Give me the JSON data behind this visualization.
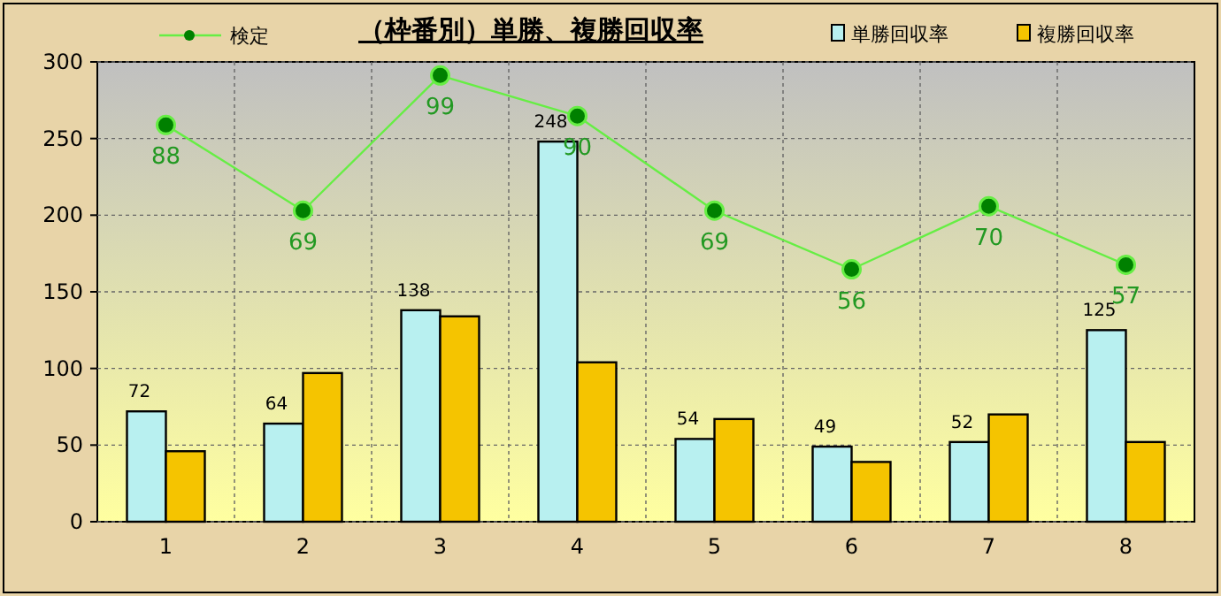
{
  "chart_data": {
    "type": "bar",
    "title": "（枠番別）単勝、複勝回収率",
    "categories": [
      "1",
      "2",
      "3",
      "4",
      "5",
      "6",
      "7",
      "8"
    ],
    "ylim": [
      0,
      300
    ],
    "yticks": [
      0,
      50,
      100,
      150,
      200,
      250,
      300
    ],
    "y2lim": [
      0,
      102
    ],
    "grid": true,
    "legend": "top",
    "series": [
      {
        "name": "単勝回収率",
        "color": "#b8f0f0",
        "values": [
          72,
          64,
          138,
          248,
          54,
          49,
          52,
          125
        ],
        "data_labels": true
      },
      {
        "name": "複勝回収率",
        "color": "#f5c400",
        "values": [
          46,
          97,
          134,
          104,
          67,
          39,
          70,
          52
        ]
      },
      {
        "name": "検定",
        "type": "line",
        "axis": "y2",
        "color": "#66ee44",
        "marker": "circle",
        "values": [
          88,
          69,
          99,
          90,
          69,
          56,
          70,
          57
        ],
        "data_labels": true
      }
    ]
  }
}
